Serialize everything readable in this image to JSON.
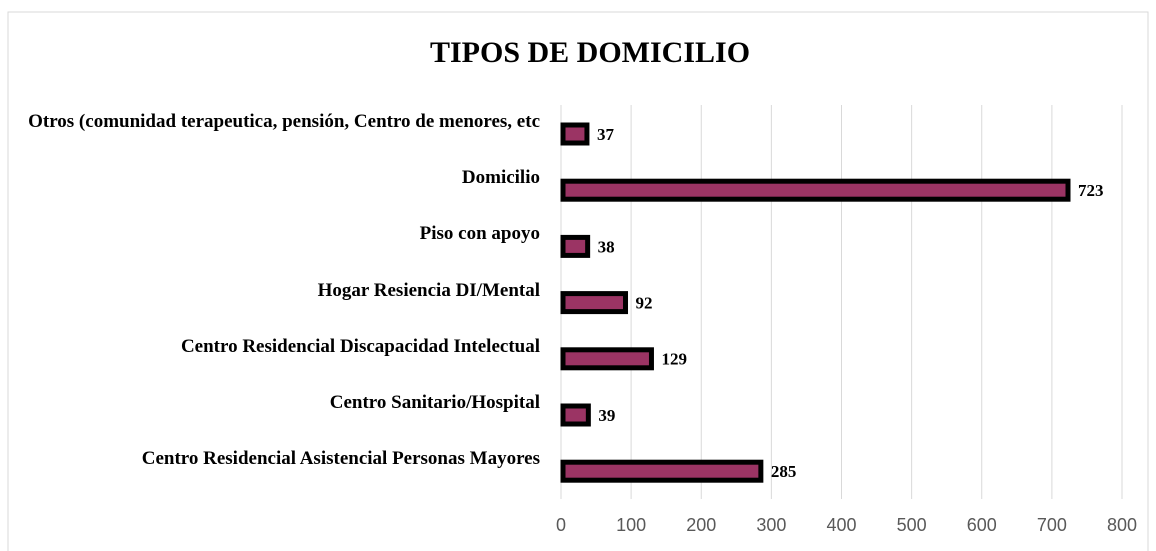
{
  "chart_data": {
    "type": "bar",
    "orientation": "horizontal",
    "title": "TIPOS DE DOMICILIO",
    "categories": [
      "Otros (comunidad terapeutica, pensión, Centro de menores, etc",
      "Domicilio",
      "Piso con apoyo",
      "Hogar Resiencia DI/Mental",
      "Centro Residencial Discapacidad Intelectual",
      "Centro Sanitario/Hospital",
      "Centro Residencial Asistencial Personas Mayores"
    ],
    "values": [
      37,
      723,
      38,
      92,
      129,
      39,
      285
    ],
    "color": "#9b3464",
    "xlim": [
      0,
      800
    ],
    "xticks": [
      0,
      100,
      200,
      300,
      400,
      500,
      600,
      700,
      800
    ],
    "grid": true
  }
}
